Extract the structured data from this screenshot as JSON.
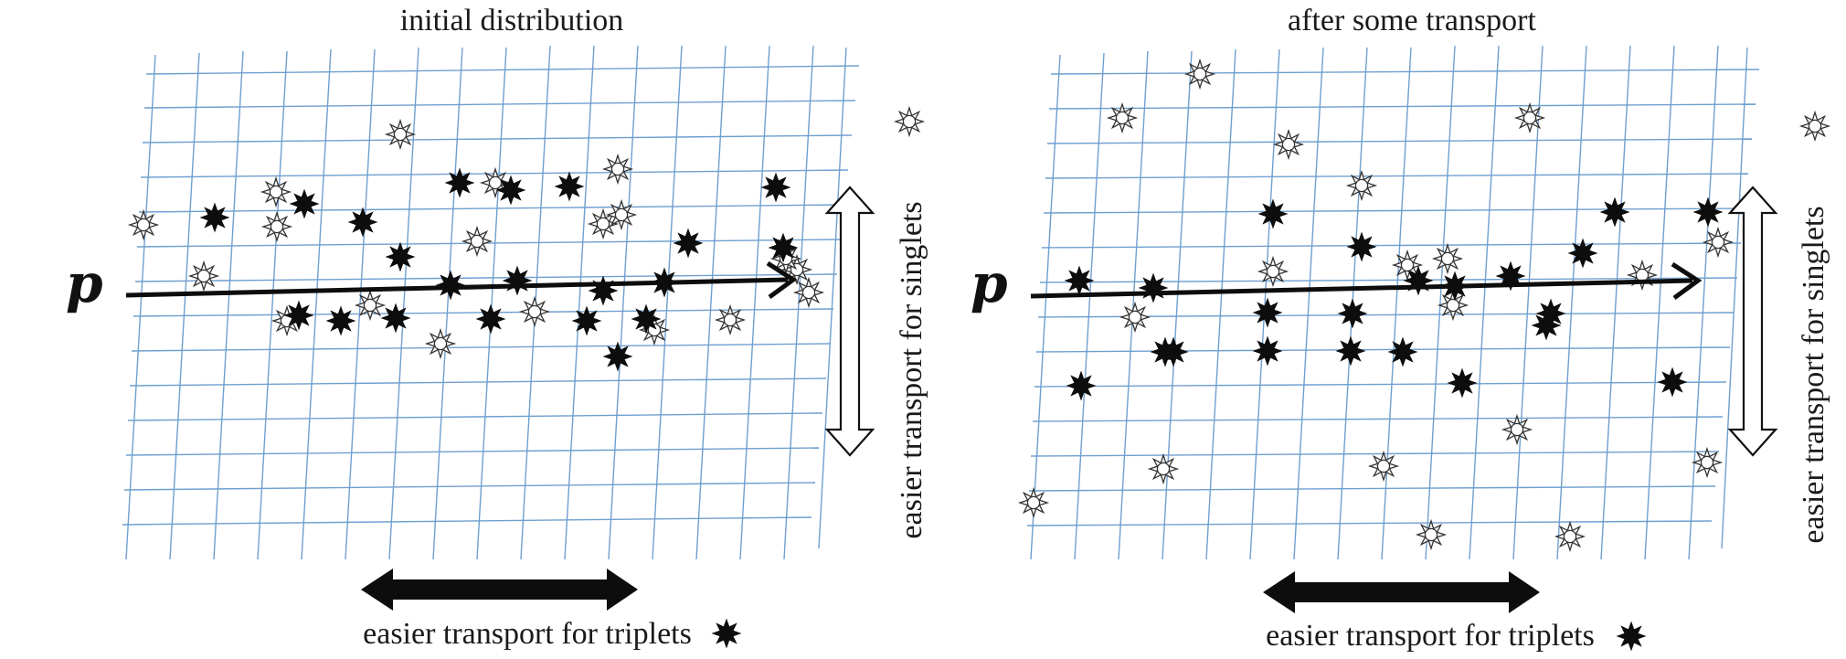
{
  "panels": [
    {
      "title": "initial distribution",
      "momentum_label": "p",
      "vertical_caption": "easier transport for singlets",
      "horizontal_caption": "easier transport for triplets",
      "triplets": [
        [
          235,
          238
        ],
        [
          333,
          223
        ],
        [
          397,
          243
        ],
        [
          503,
          200
        ],
        [
          438,
          281
        ],
        [
          559,
          208
        ],
        [
          623,
          204
        ],
        [
          327,
          345
        ],
        [
          433,
          348
        ],
        [
          493,
          312
        ],
        [
          373,
          351
        ],
        [
          537,
          349
        ],
        [
          642,
          351
        ],
        [
          676,
          390
        ],
        [
          707,
          349
        ],
        [
          727,
          309
        ],
        [
          566,
          307
        ],
        [
          753,
          266
        ],
        [
          857,
          271
        ],
        [
          849,
          205
        ],
        [
          660,
          318
        ]
      ],
      "singlets": [
        [
          157,
          246
        ],
        [
          302,
          210
        ],
        [
          303,
          248
        ],
        [
          223,
          302
        ],
        [
          314,
          351
        ],
        [
          438,
          147
        ],
        [
          405,
          334
        ],
        [
          542,
          200
        ],
        [
          522,
          264
        ],
        [
          676,
          185
        ],
        [
          660,
          245
        ],
        [
          585,
          341
        ],
        [
          482,
          376
        ],
        [
          680,
          235
        ],
        [
          872,
          295
        ],
        [
          716,
          361
        ],
        [
          799,
          350
        ],
        [
          860,
          283
        ],
        [
          885,
          320
        ],
        [
          995,
          133
        ]
      ]
    },
    {
      "title": "after some transport",
      "momentum_label": "p",
      "vertical_caption": "easier transport for singlets",
      "horizontal_caption": "easier transport for triplets",
      "triplets": [
        [
          1181,
          307
        ],
        [
          1262,
          315
        ],
        [
          1393,
          234
        ],
        [
          1490,
          270
        ],
        [
          1552,
          307
        ],
        [
          1653,
          302
        ],
        [
          1697,
          343
        ],
        [
          1767,
          232
        ],
        [
          1869,
          232
        ],
        [
          1732,
          277
        ],
        [
          1592,
          313
        ],
        [
          1387,
          342
        ],
        [
          1284,
          385
        ],
        [
          1387,
          384
        ],
        [
          1480,
          343
        ],
        [
          1478,
          384
        ],
        [
          1535,
          385
        ],
        [
          1600,
          419
        ],
        [
          1692,
          356
        ],
        [
          1830,
          418
        ],
        [
          1183,
          422
        ],
        [
          1275,
          385
        ]
      ],
      "singlets": [
        [
          1313,
          81
        ],
        [
          1228,
          129
        ],
        [
          1410,
          158
        ],
        [
          1490,
          203
        ],
        [
          1674,
          129
        ],
        [
          1584,
          283
        ],
        [
          1393,
          297
        ],
        [
          1242,
          347
        ],
        [
          1590,
          334
        ],
        [
          1540,
          290
        ],
        [
          1797,
          301
        ],
        [
          1880,
          265
        ],
        [
          1660,
          470
        ],
        [
          1273,
          513
        ],
        [
          1514,
          510
        ],
        [
          1131,
          550
        ],
        [
          1566,
          585
        ],
        [
          1718,
          587
        ],
        [
          1868,
          506
        ],
        [
          1986,
          138
        ]
      ]
    }
  ]
}
